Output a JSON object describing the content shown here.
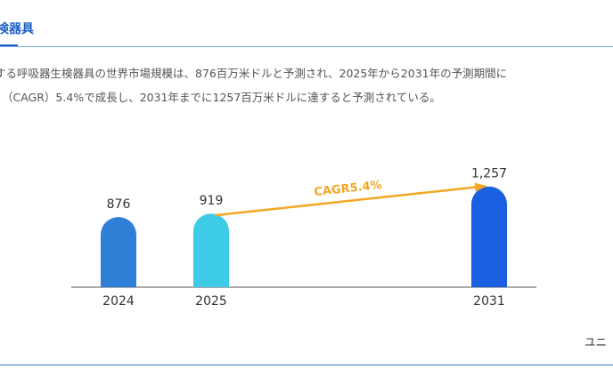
{
  "header": {
    "title": "検器具"
  },
  "paragraph": [
    "する呼吸器生検器具の世界市場規模は、876百万米ドルと予測され、2025年から2031年の予測期間に",
    "（CAGR）5.4%で成長し、2031年までに1257百万米ドルに達すると予測されている。"
  ],
  "chart_data": {
    "type": "bar",
    "categories": [
      "2024",
      "2025",
      null,
      null,
      "2031"
    ],
    "values": [
      876,
      919,
      null,
      null,
      1257
    ],
    "value_labels": [
      "876",
      "919",
      null,
      null,
      "1,257"
    ],
    "colors": [
      "#2f7fd6",
      "#3ecbe8",
      null,
      null,
      "#1a5fe0"
    ],
    "annotation": "CAGR5.4%",
    "annotation_color": "#f5a623"
  },
  "footer": {
    "unit": "ユニ"
  }
}
